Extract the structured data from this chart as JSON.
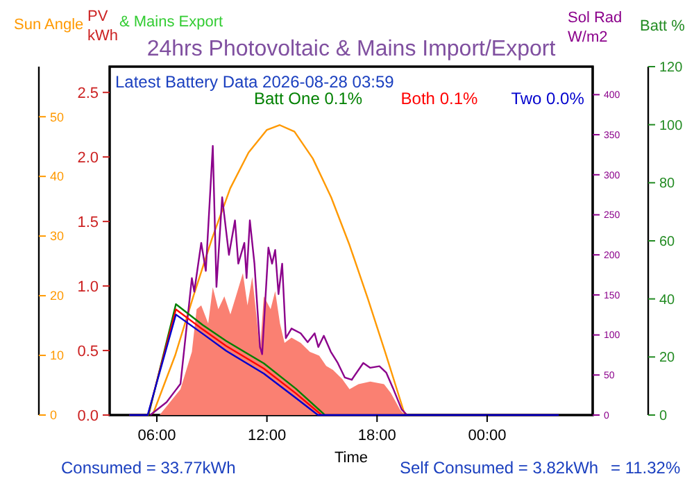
{
  "chart_data": [
    {
      "type": "line",
      "title": "24hrs Photovoltaic & Mains Import/Export",
      "xlabel": "Time",
      "ylabel": "PV kWh",
      "y2label": "Sol Rad W/m2",
      "y3label": "Batt %",
      "annotations": [
        "& Mains Export",
        "Latest Battery Data 2026-08-28 03:59",
        "Consumed = 33.77kWh",
        "Self Consumed = 3.82kWh",
        "= 11.32%"
      ],
      "xlim": [
        3.43,
        29.75
      ],
      "xticks": [
        {
          "value": 6,
          "label": "06:00"
        },
        {
          "value": 12,
          "label": "12:00"
        },
        {
          "value": 18,
          "label": "18:00"
        },
        {
          "value": 24,
          "label": "00:00"
        }
      ],
      "ylim": [
        0,
        2.7
      ],
      "yticks": [
        {
          "value": 0,
          "label": "0.0"
        },
        {
          "value": 0.5,
          "label": "0.5"
        },
        {
          "value": 1,
          "label": "1.0"
        },
        {
          "value": 1.5,
          "label": "1.5"
        },
        {
          "value": 2,
          "label": "2.0"
        },
        {
          "value": 2.5,
          "label": "2.5"
        }
      ],
      "y2lim": [
        0,
        435
      ],
      "y2ticks": [
        0,
        50,
        100,
        150,
        200,
        250,
        300,
        350,
        400
      ],
      "y3lim": [
        0,
        120
      ],
      "y3ticks": [
        0,
        20,
        40,
        60,
        80,
        100,
        120
      ],
      "legend": "top",
      "line_style": "solid",
      "series": [
        {
          "type": "area",
          "color": "#fa8072",
          "x": [
            6.15,
            7.29,
            7.91,
            8.17,
            8.42,
            8.8,
            9.05,
            9.35,
            9.68,
            10.01,
            10.31,
            10.69,
            10.94,
            11.2,
            11.45,
            11.62,
            11.83,
            12.2,
            12.45,
            12.71,
            12.96,
            13.34,
            13.84,
            14.34,
            14.85,
            15.23,
            15.6,
            16.1,
            16.5,
            16.99,
            17.63,
            18.38,
            18.76,
            19.26,
            19.52
          ],
          "values": [
            0,
            0.2,
            0.49,
            0.82,
            0.85,
            0.71,
            0.99,
            0.82,
            0.92,
            0.78,
            0.92,
            1.1,
            0.85,
            1.07,
            0.74,
            0.49,
            0.92,
            0.82,
            0.96,
            0.71,
            0.56,
            0.6,
            0.56,
            0.49,
            0.46,
            0.38,
            0.35,
            0.28,
            0.2,
            0.24,
            0.26,
            0.24,
            0.17,
            0.04,
            0
          ]
        },
        {
          "color": "#8b008b",
          "axis": "y2",
          "x": [
            5.64,
            6.53,
            7.29,
            7.91,
            8.04,
            8.42,
            8.67,
            9.05,
            9.25,
            9.56,
            9.93,
            10.26,
            10.44,
            10.77,
            10.89,
            11.07,
            11.32,
            11.62,
            11.74,
            12.08,
            12.28,
            12.45,
            12.63,
            12.83,
            13.03,
            13.34,
            13.84,
            14.22,
            14.6,
            14.8,
            15.1,
            15.48,
            15.86,
            16.24,
            16.62,
            17.25,
            17.63,
            18.13,
            18.5,
            18.88,
            19.34,
            19.64
          ],
          "values": [
            0,
            16,
            39,
            171,
            154,
            215,
            180,
            336,
            160,
            272,
            200,
            243,
            189,
            215,
            171,
            243,
            189,
            85,
            76,
            209,
            189,
            206,
            151,
            189,
            96,
            108,
            102,
            91,
            102,
            85,
            99,
            79,
            65,
            47,
            44,
            65,
            59,
            61,
            53,
            33,
            7,
            0
          ]
        },
        {
          "name": "Batt One 0.1%",
          "color": "#008000",
          "axis": "y3",
          "x": [
            4.5,
            5.55,
            7.04,
            8.5,
            9.78,
            11.83,
            13.57,
            15.16,
            27.9
          ],
          "values": [
            0,
            0,
            38.2,
            31,
            25.5,
            17.8,
            9.1,
            0,
            0
          ]
        },
        {
          "name": "Both 0.1%",
          "color": "#ff0000",
          "axis": "y3",
          "x": [
            4.5,
            5.52,
            7.04,
            8.5,
            9.78,
            11.83,
            13.57,
            14.98,
            27.9
          ],
          "values": [
            0,
            0,
            36.4,
            29.5,
            23.8,
            16,
            7.5,
            0,
            0
          ]
        },
        {
          "name": "Two 0.0%",
          "color": "#0000cd",
          "axis": "y3",
          "x": [
            4.5,
            5.5,
            7.04,
            8.5,
            9.78,
            11.83,
            13.57,
            14.78,
            27.9
          ],
          "values": [
            0,
            0,
            34.6,
            28,
            22.1,
            14.3,
            5.9,
            0,
            0
          ]
        }
      ]
    },
    {
      "type": "line",
      "ylabel": "Sun Angle",
      "xlim": [
        3.43,
        29.75
      ],
      "ylim": [
        0,
        58.4
      ],
      "yticks": [
        0,
        10,
        20,
        30,
        40,
        50
      ],
      "tick_labels": "y",
      "line_style": "solid",
      "series": [
        {
          "color": "#ff9900",
          "x": [
            5.77,
            7,
            8,
            9,
            10,
            11,
            12,
            12.7,
            13.5,
            14.5,
            15.5,
            16.5,
            17.5,
            18.5,
            19.52
          ],
          "values": [
            0,
            10,
            20,
            29.5,
            38,
            44,
            47.8,
            48.6,
            47.5,
            43,
            36.5,
            28.5,
            19.5,
            10,
            0
          ]
        }
      ]
    }
  ]
}
